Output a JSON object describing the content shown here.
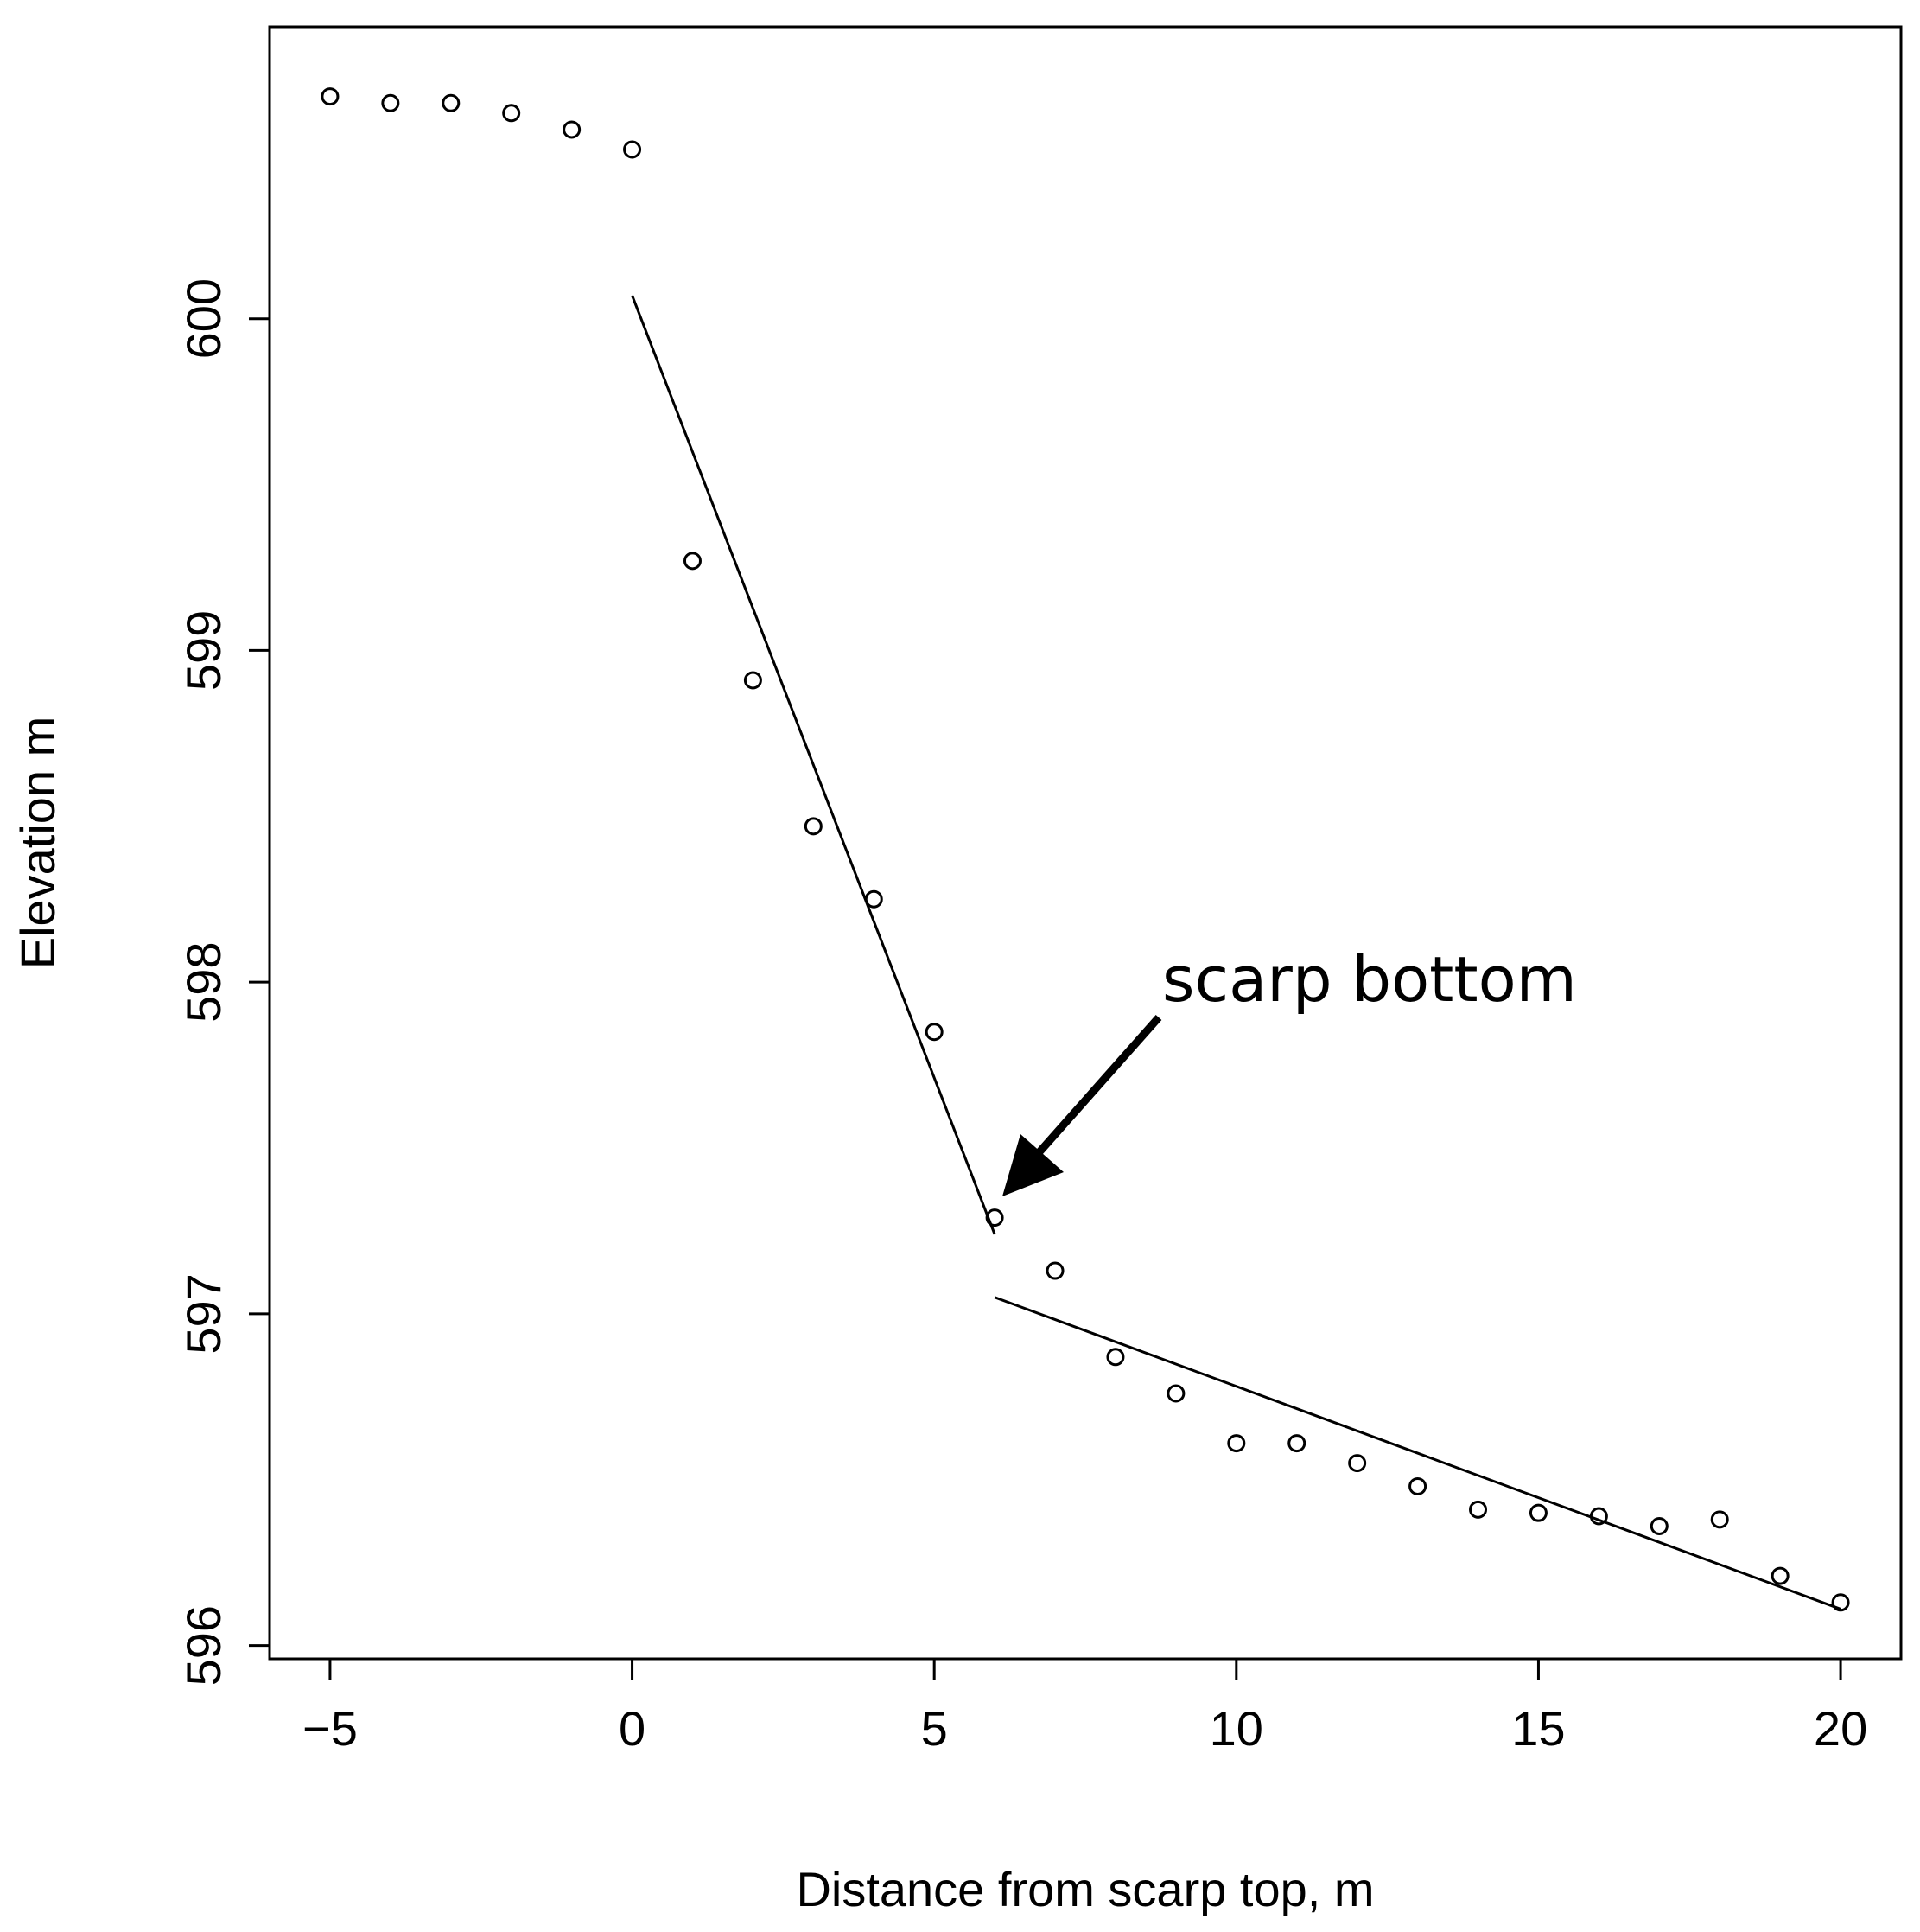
{
  "chart_data": {
    "type": "scatter",
    "title": "",
    "xlabel": "Distance from scarp top, m",
    "ylabel": "Elevation m",
    "xlim": [
      -6,
      21
    ],
    "ylim": [
      595.96,
      600.88
    ],
    "xticks": [
      -5,
      0,
      5,
      10,
      15,
      20
    ],
    "xtick_labels": [
      "−5",
      "0",
      "5",
      "10",
      "15",
      "20"
    ],
    "yticks": [
      596,
      597,
      598,
      599,
      600
    ],
    "ytick_labels": [
      "596",
      "597",
      "598",
      "599",
      "600"
    ],
    "grid": false,
    "legend": "none",
    "series": [
      {
        "marker": "open-circle",
        "x": [
          -5,
          -4,
          -3,
          -2,
          -1,
          0,
          1,
          2,
          3,
          4,
          5,
          6,
          7,
          8,
          9,
          10,
          11,
          12,
          13,
          14,
          15,
          16,
          17,
          18,
          19,
          20
        ],
        "y": [
          600.67,
          600.65,
          600.65,
          600.62,
          600.57,
          600.51,
          599.27,
          598.91,
          598.47,
          598.25,
          597.85,
          597.29,
          597.13,
          596.87,
          596.76,
          596.61,
          596.61,
          596.55,
          596.48,
          596.41,
          596.4,
          596.39,
          596.36,
          596.38,
          596.21,
          596.13
        ]
      }
    ],
    "fit_lines": [
      {
        "x": [
          0,
          6
        ],
        "y": [
          600.07,
          597.24
        ]
      },
      {
        "x": [
          6,
          20
        ],
        "y": [
          597.05,
          596.11
        ]
      }
    ],
    "annotations": [
      {
        "text": "scarp bottom",
        "points_to": {
          "x": 6,
          "y": 597.29
        }
      }
    ]
  }
}
